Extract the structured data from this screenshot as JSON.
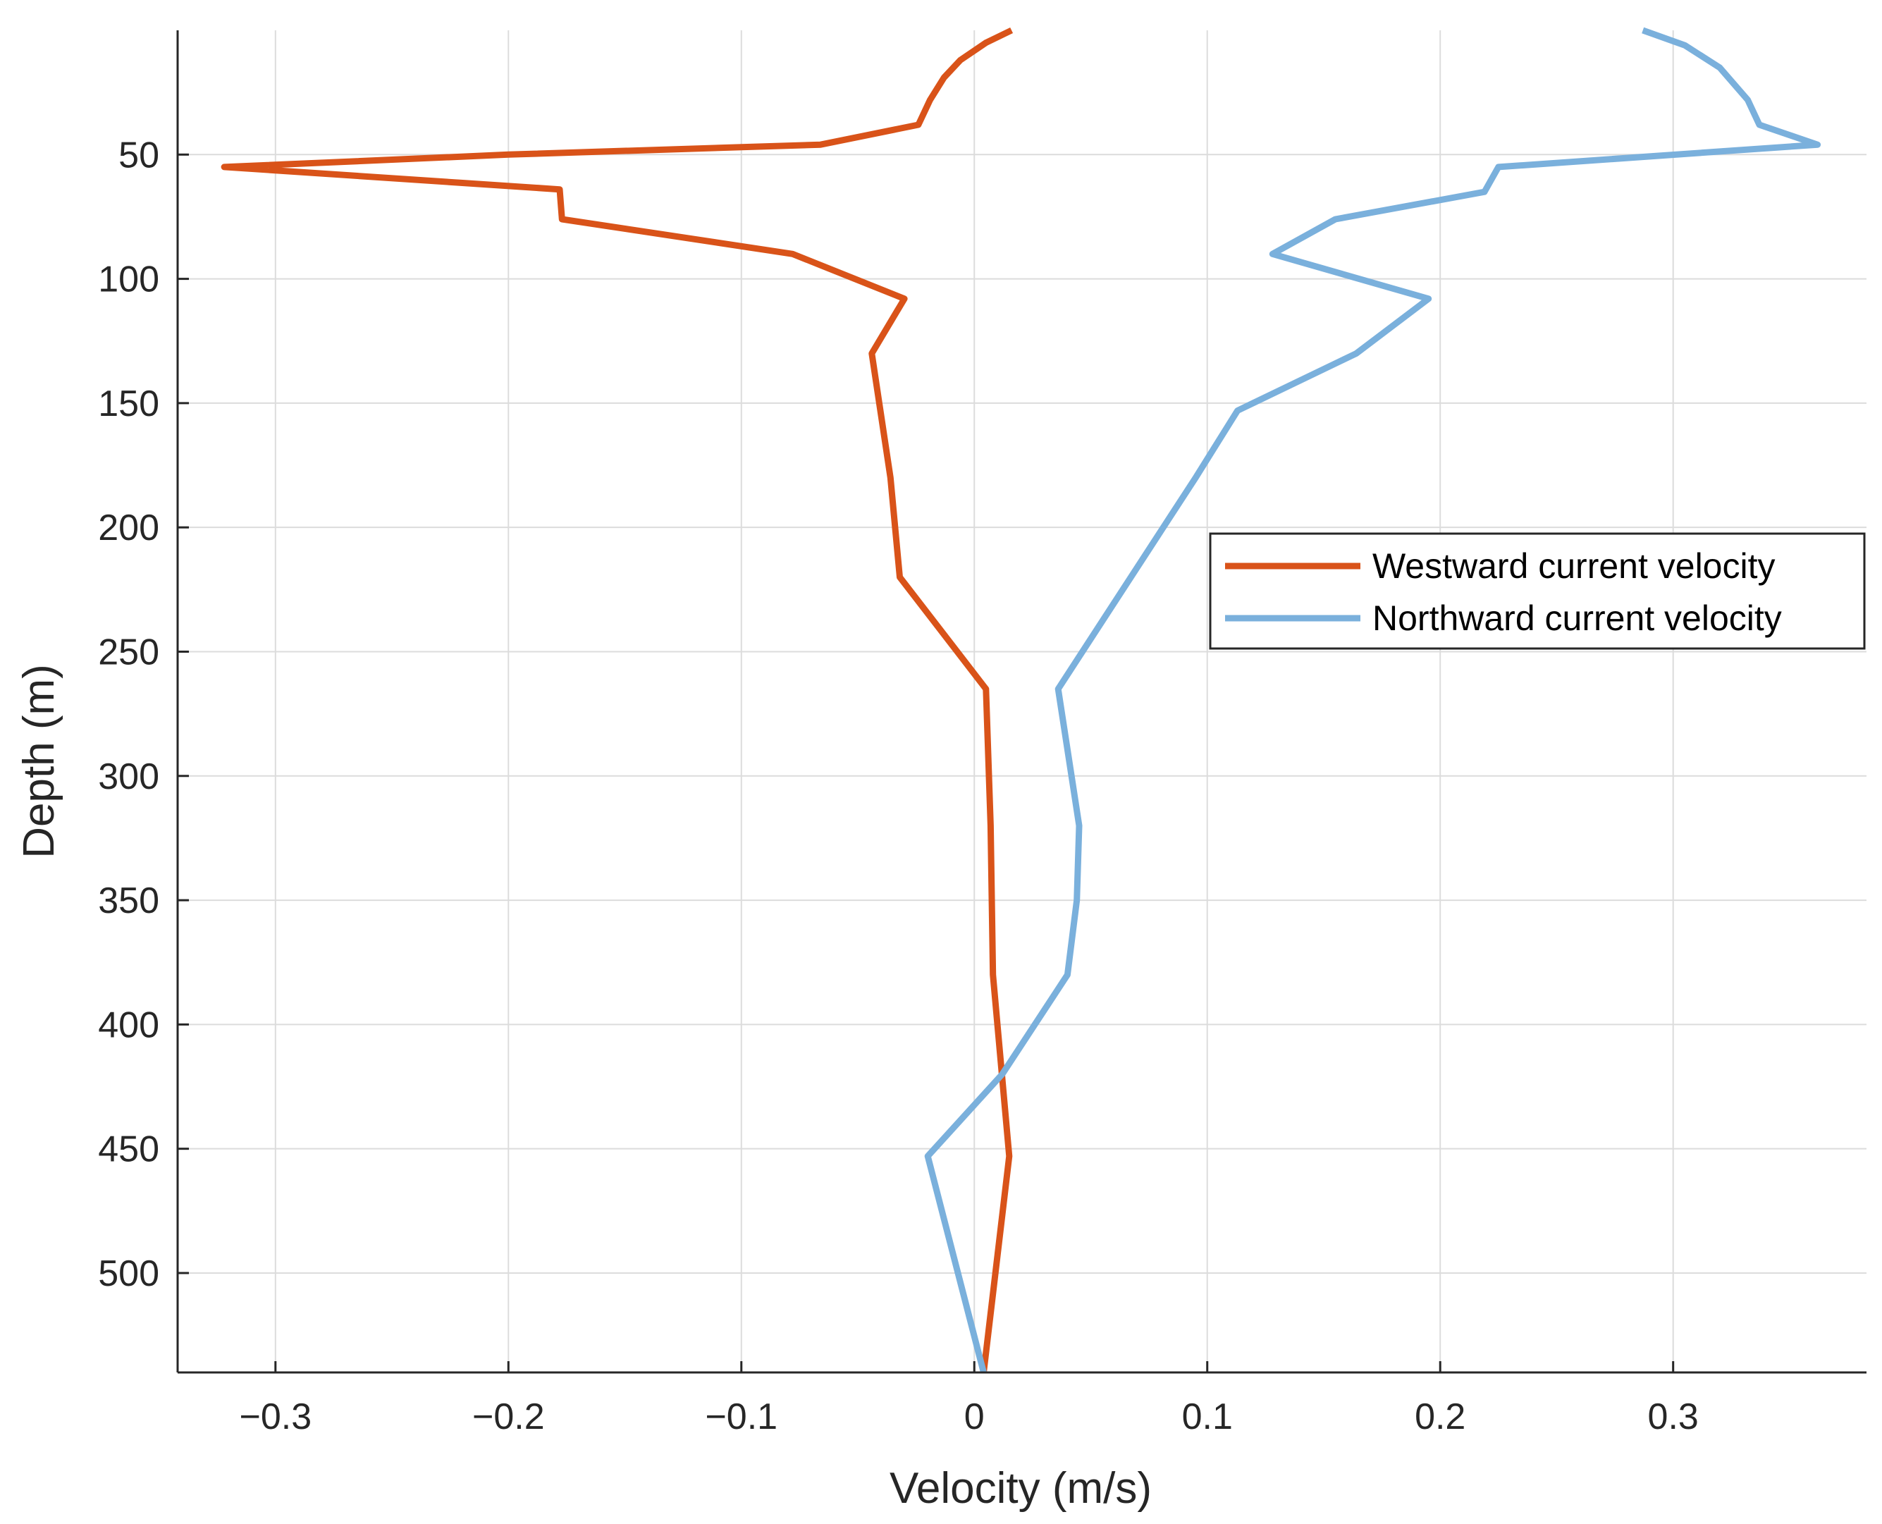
{
  "chart_data": {
    "type": "line",
    "orientation": "vertical-profile",
    "title": "",
    "xlabel": "Velocity (m/s)",
    "ylabel": "Depth (m)",
    "xlim": [
      -0.342,
      0.383
    ],
    "ylim": [
      0,
      540
    ],
    "y_reversed": true,
    "grid": true,
    "legend_position": "right",
    "x_ticks": [
      -0.3,
      -0.2,
      -0.1,
      0,
      0.1,
      0.2,
      0.3
    ],
    "x_tick_labels": [
      "−0.3",
      "−0.2",
      "−0.1",
      "0",
      "0.1",
      "0.2",
      "0.3"
    ],
    "y_ticks": [
      50,
      100,
      150,
      200,
      250,
      300,
      350,
      400,
      450,
      500
    ],
    "y_tick_labels": [
      "50",
      "100",
      "150",
      "200",
      "250",
      "300",
      "350",
      "400",
      "450",
      "500"
    ],
    "series": [
      {
        "name": "Westward current velocity",
        "color": "#d95319",
        "points": [
          [
            0.016,
            0
          ],
          [
            0.005,
            5
          ],
          [
            -0.006,
            12
          ],
          [
            -0.013,
            19
          ],
          [
            -0.019,
            28
          ],
          [
            -0.024,
            38
          ],
          [
            -0.066,
            46
          ],
          [
            -0.2,
            50
          ],
          [
            -0.322,
            55
          ],
          [
            -0.178,
            64
          ],
          [
            -0.177,
            76
          ],
          [
            -0.078,
            90
          ],
          [
            -0.03,
            108
          ],
          [
            -0.044,
            130
          ],
          [
            -0.036,
            180
          ],
          [
            -0.032,
            220
          ],
          [
            0.005,
            265
          ],
          [
            0.007,
            320
          ],
          [
            0.008,
            380
          ],
          [
            0.015,
            453
          ],
          [
            0.004,
            540
          ]
        ]
      },
      {
        "name": "Northward current velocity",
        "color": "#7ab0dc",
        "points": [
          [
            0.287,
            0
          ],
          [
            0.305,
            6
          ],
          [
            0.32,
            15
          ],
          [
            0.332,
            28
          ],
          [
            0.337,
            38
          ],
          [
            0.362,
            46
          ],
          [
            0.225,
            55
          ],
          [
            0.219,
            65
          ],
          [
            0.155,
            76
          ],
          [
            0.128,
            90
          ],
          [
            0.195,
            108
          ],
          [
            0.164,
            130
          ],
          [
            0.113,
            153
          ],
          [
            0.095,
            180
          ],
          [
            0.036,
            265
          ],
          [
            0.045,
            320
          ],
          [
            0.044,
            350
          ],
          [
            0.04,
            380
          ],
          [
            0.012,
            420
          ],
          [
            -0.02,
            453
          ],
          [
            0.004,
            540
          ]
        ]
      }
    ]
  }
}
